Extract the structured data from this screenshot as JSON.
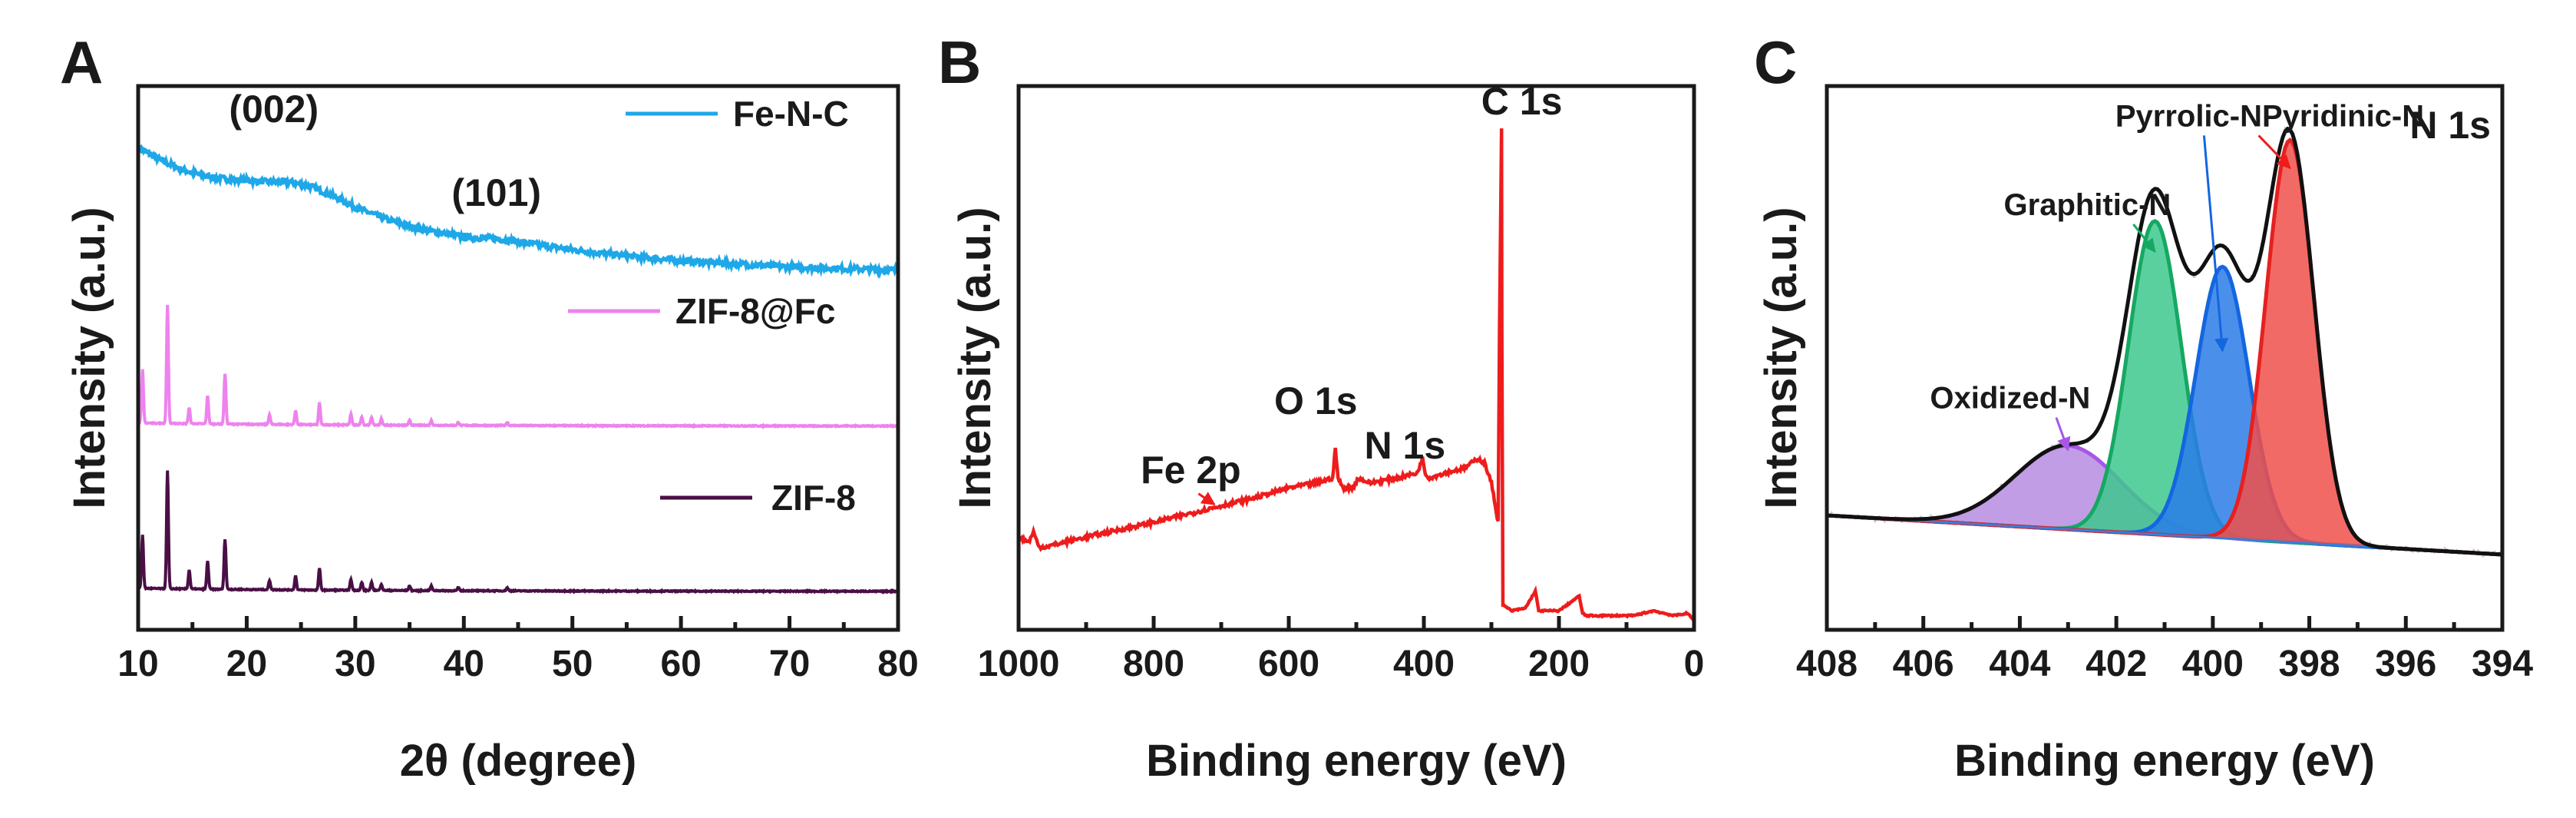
{
  "chart_data": [
    {
      "panel": "A",
      "type": "line",
      "xlabel": "2θ (degree)",
      "ylabel": "Intensity (a.u.)",
      "xlim": [
        10,
        80
      ],
      "xticks": [
        "10",
        "20",
        "30",
        "40",
        "50",
        "60",
        "70",
        "80"
      ],
      "series": [
        {
          "name": "Fe-N-C",
          "color": "#1ea8e8",
          "offset": 2.0,
          "x": [
            10,
            12,
            14,
            16,
            18,
            20,
            22,
            24,
            26,
            28,
            30,
            33,
            36,
            40,
            43,
            46,
            50,
            55,
            60,
            65,
            70,
            75,
            80
          ],
          "y": [
            0.82,
            0.74,
            0.68,
            0.64,
            0.62,
            0.61,
            0.6,
            0.6,
            0.57,
            0.51,
            0.44,
            0.36,
            0.3,
            0.25,
            0.24,
            0.21,
            0.17,
            0.13,
            0.1,
            0.08,
            0.06,
            0.05,
            0.04
          ]
        },
        {
          "name": "ZIF-8@Fc",
          "color": "#ee82ee",
          "offset": 1.05,
          "peaks": [
            [
              10.4,
              0.34
            ],
            [
              12.7,
              0.75
            ],
            [
              14.7,
              0.1
            ],
            [
              16.4,
              0.18
            ],
            [
              18.0,
              0.32
            ],
            [
              22.1,
              0.06
            ],
            [
              24.5,
              0.09
            ],
            [
              26.7,
              0.14
            ],
            [
              29.6,
              0.07
            ],
            [
              30.6,
              0.05
            ],
            [
              31.5,
              0.05
            ],
            [
              32.4,
              0.04
            ],
            [
              35.0,
              0.03
            ],
            [
              37.0,
              0.03
            ],
            [
              39.5,
              0.02
            ],
            [
              44.0,
              0.02
            ]
          ]
        },
        {
          "name": "ZIF-8",
          "color": "#4a0f45",
          "offset": 0.0,
          "peaks": [
            [
              10.4,
              0.34
            ],
            [
              12.7,
              0.75
            ],
            [
              14.7,
              0.12
            ],
            [
              16.4,
              0.18
            ],
            [
              18.0,
              0.32
            ],
            [
              22.1,
              0.06
            ],
            [
              24.5,
              0.09
            ],
            [
              26.7,
              0.14
            ],
            [
              29.6,
              0.07
            ],
            [
              30.6,
              0.05
            ],
            [
              31.5,
              0.05
            ],
            [
              32.4,
              0.04
            ],
            [
              35.0,
              0.03
            ],
            [
              37.0,
              0.03
            ],
            [
              39.5,
              0.02
            ],
            [
              44.0,
              0.02
            ]
          ]
        }
      ],
      "annotations": [
        {
          "text": "(002)",
          "x": 22.5,
          "y": 2.98
        },
        {
          "text": "(101)",
          "x": 43.0,
          "y": 2.45
        }
      ]
    },
    {
      "panel": "B",
      "type": "line",
      "xlabel": "Binding energy (eV)",
      "ylabel": "Intensity (a.u.)",
      "xlim": [
        1000,
        0
      ],
      "xticks": [
        "1000",
        "800",
        "600",
        "400",
        "200",
        "0"
      ],
      "series": [
        {
          "name": "XPS survey",
          "color": "#ee1c1c",
          "x": [
            1000,
            985,
            978,
            970,
            960,
            900,
            800,
            710,
            650,
            600,
            560,
            535,
            531,
            527,
            520,
            505,
            497,
            480,
            440,
            410,
            402,
            398,
            392,
            370,
            340,
            320,
            310,
            300,
            290,
            288,
            285,
            284.5,
            283,
            281,
            270,
            250,
            235,
            230,
            225,
            200,
            170,
            165,
            160,
            120,
            90,
            60,
            30,
            10,
            0
          ],
          "y": [
            0.17,
            0.16,
            0.18,
            0.15,
            0.15,
            0.17,
            0.2,
            0.23,
            0.25,
            0.27,
            0.28,
            0.29,
            0.35,
            0.29,
            0.27,
            0.27,
            0.29,
            0.28,
            0.29,
            0.3,
            0.33,
            0.3,
            0.29,
            0.3,
            0.31,
            0.33,
            0.32,
            0.28,
            0.2,
            0.6,
            1.0,
            0.6,
            0.03,
            0.03,
            0.02,
            0.025,
            0.06,
            0.02,
            0.02,
            0.02,
            0.05,
            0.015,
            0.01,
            0.01,
            0.01,
            0.02,
            0.01,
            0.015,
            0.0
          ]
        }
      ],
      "annotations": [
        {
          "text": "C 1s",
          "x": 255,
          "y": 1.03
        },
        {
          "text": "O 1s",
          "x": 560,
          "y": 0.42
        },
        {
          "text": "N 1s",
          "x": 428,
          "y": 0.33
        },
        {
          "text": "Fe 2p",
          "x": 745,
          "y": 0.28,
          "arrow_to": [
            710,
            0.23
          ]
        }
      ]
    },
    {
      "panel": "C",
      "type": "line",
      "title": "N 1s",
      "xlabel": "Binding energy (eV)",
      "ylabel": "Intensity (a.u.)",
      "xlim": [
        408,
        394
      ],
      "xticks": [
        "408",
        "406",
        "404",
        "402",
        "400",
        "398",
        "396",
        "394"
      ],
      "baseline": {
        "start": 0.175,
        "end": 0.1
      },
      "components": [
        {
          "name": "Oxidized-N",
          "center": 403.0,
          "height": 0.16,
          "sigma": 1.1,
          "color": "#b68ce0",
          "edge": "#a855e8"
        },
        {
          "name": "Graphitic-N",
          "center": 401.2,
          "height": 0.6,
          "sigma": 0.55,
          "color": "#3ec88e",
          "edge": "#16a862"
        },
        {
          "name": "Pyrrolic-N",
          "center": 399.8,
          "height": 0.52,
          "sigma": 0.55,
          "color": "#2a7de8",
          "edge": "#1466e0"
        },
        {
          "name": "Pyridinic-N",
          "center": 398.4,
          "height": 0.77,
          "sigma": 0.5,
          "color": "#f0504a",
          "edge": "#e62020"
        }
      ],
      "labels": [
        {
          "text": "Pyridinic-N",
          "x": 397.3,
          "y": 0.92,
          "arrow_to": [
            398.4,
            0.84
          ]
        },
        {
          "text": "Pyrrolic-N",
          "x": 400.5,
          "y": 0.92,
          "arrow_to": [
            399.8,
            0.49
          ]
        },
        {
          "text": "Graphitic-N",
          "x": 402.6,
          "y": 0.75,
          "arrow_to": [
            401.2,
            0.68
          ]
        },
        {
          "text": "Oxidized-N",
          "x": 404.2,
          "y": 0.38,
          "arrow_to": [
            403.0,
            0.3
          ]
        }
      ]
    }
  ]
}
